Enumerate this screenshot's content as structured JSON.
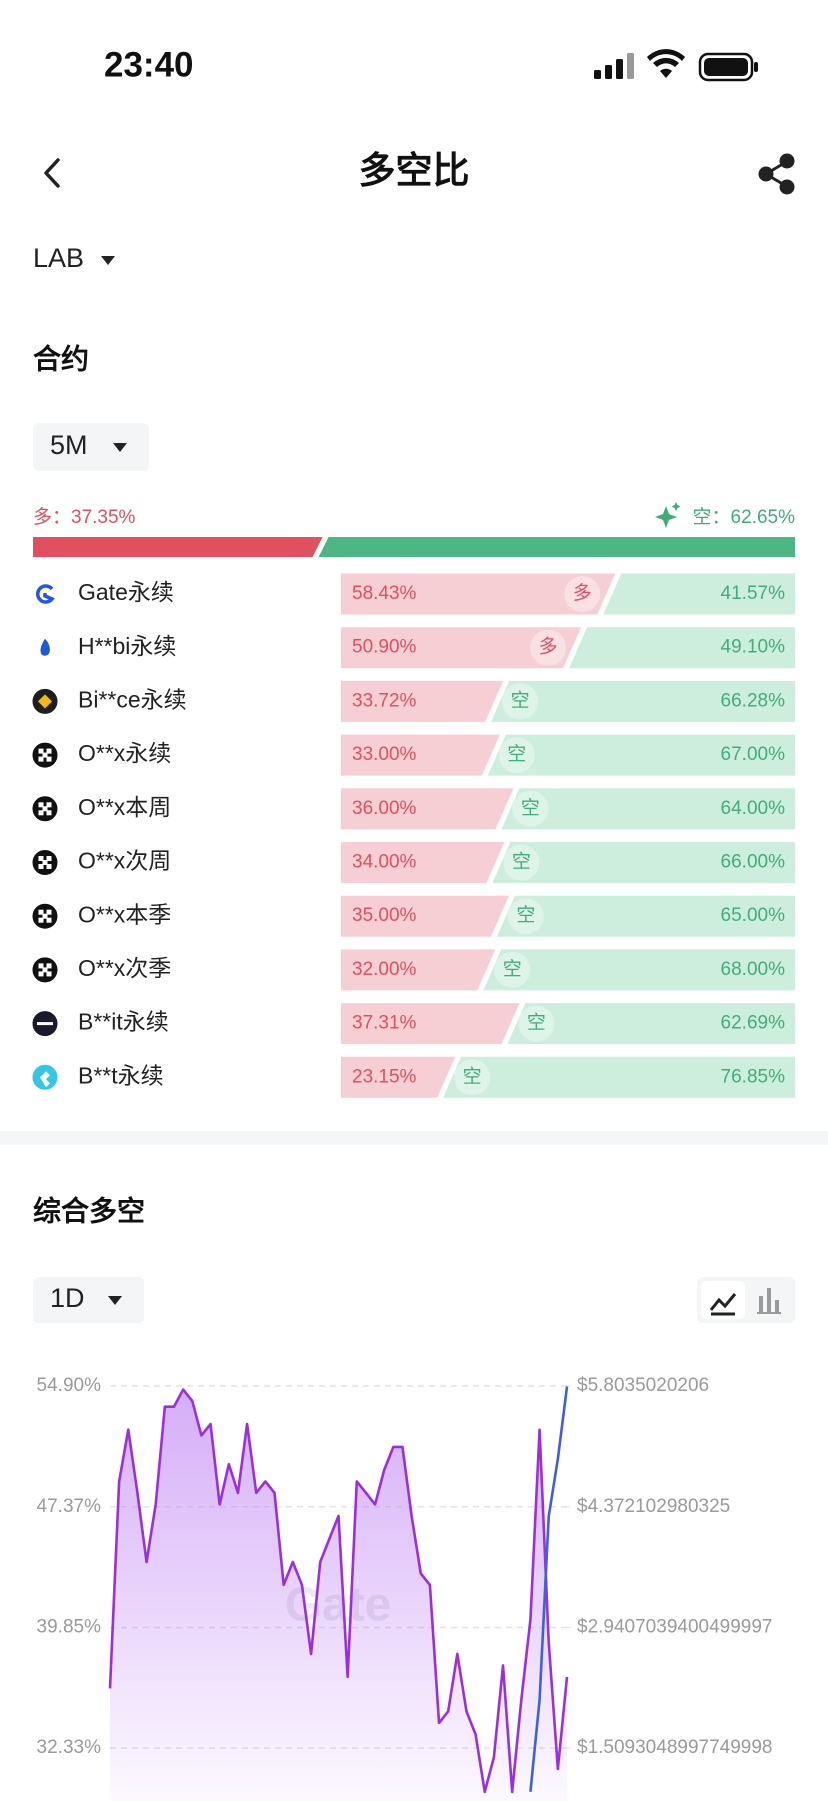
{
  "status_bar": {
    "time": "23:40"
  },
  "header": {
    "title": "多空比"
  },
  "coin": "LAB",
  "contracts": {
    "title": "合约",
    "period": "5M",
    "overall": {
      "long_label": "多：",
      "long": 37.35,
      "long_value_label": "37.35%",
      "short_label": "空：",
      "short": 62.65,
      "short_value_label": "62.65%"
    },
    "rows": [
      {
        "name": "Gate永续",
        "long": 58.43,
        "long_label": "58.43%",
        "short": 41.57,
        "short_label": "41.57%",
        "tag": "多"
      },
      {
        "name": "H**bi永续",
        "long": 50.9,
        "long_label": "50.90%",
        "short": 49.1,
        "short_label": "49.10%",
        "tag": "多"
      },
      {
        "name": "Bi**ce永续",
        "long": 33.72,
        "long_label": "33.72%",
        "short": 66.28,
        "short_label": "66.28%",
        "tag": "空"
      },
      {
        "name": "O**x永续",
        "long": 33.0,
        "long_label": "33.00%",
        "short": 67.0,
        "short_label": "67.00%",
        "tag": "空"
      },
      {
        "name": "O**x本周",
        "long": 36.0,
        "long_label": "36.00%",
        "short": 64.0,
        "short_label": "64.00%",
        "tag": "空"
      },
      {
        "name": "O**x次周",
        "long": 34.0,
        "long_label": "34.00%",
        "short": 66.0,
        "short_label": "66.00%",
        "tag": "空"
      },
      {
        "name": "O**x本季",
        "long": 35.0,
        "long_label": "35.00%",
        "short": 65.0,
        "short_label": "65.00%",
        "tag": "空"
      },
      {
        "name": "O**x次季",
        "long": 32.0,
        "long_label": "32.00%",
        "short": 68.0,
        "short_label": "68.00%",
        "tag": "空"
      },
      {
        "name": "B**it永续",
        "long": 37.31,
        "long_label": "37.31%",
        "short": 62.69,
        "short_label": "62.69%",
        "tag": "空"
      },
      {
        "name": "B**t永续",
        "long": 23.15,
        "long_label": "23.15%",
        "short": 76.85,
        "short_label": "76.85%",
        "tag": "空"
      }
    ]
  },
  "composite": {
    "title": "综合多空",
    "period": "1D"
  },
  "chart_data": {
    "type": "line",
    "watermark": "Gate",
    "ylim": [
      29.03,
      55.5
    ],
    "yticks": [
      {
        "value": 54.9,
        "label": "54.90%"
      },
      {
        "value": 47.37,
        "label": "47.37%"
      },
      {
        "value": 39.85,
        "label": "39.85%"
      },
      {
        "value": 32.33,
        "label": "32.33%"
      }
    ],
    "y2lim": [
      0.88,
      5.92
    ],
    "y2ticks": [
      {
        "value": 5.8035020206,
        "label": "$5.8035020206"
      },
      {
        "value": 4.372102980325,
        "label": "$4.372102980325"
      },
      {
        "value": 2.9407039400499997,
        "label": "$2.9407039400499997"
      },
      {
        "value": 1.5093048997749998,
        "label": "$1.5093048997749998"
      }
    ],
    "grid": true,
    "series": [
      {
        "color": "#9b2ee0",
        "values": [
          36.05,
          48.95,
          52.18,
          48.24,
          43.93,
          47.52,
          53.61,
          53.61,
          54.68,
          53.97,
          51.82,
          52.53,
          47.52,
          50.03,
          48.24,
          52.53,
          48.24,
          48.95,
          48.24,
          42.5,
          43.93,
          42.5,
          38.2,
          43.93,
          45.37,
          46.8,
          36.77,
          48.95,
          48.24,
          47.52,
          49.67,
          51.1,
          51.1,
          46.8,
          43.22,
          42.5,
          33.9,
          34.62,
          38.2,
          34.62,
          33.18,
          29.6,
          31.75,
          37.48,
          29.6,
          35.33,
          40.35,
          52.18,
          38.92,
          31.03,
          36.77
        ]
      },
      {
        "color": "#3d5fe0",
        "axis": "y2",
        "values": [
          null,
          null,
          null,
          null,
          null,
          null,
          null,
          null,
          null,
          null,
          null,
          null,
          null,
          null,
          null,
          null,
          null,
          null,
          null,
          null,
          null,
          null,
          null,
          null,
          null,
          null,
          null,
          null,
          null,
          null,
          null,
          null,
          null,
          null,
          null,
          null,
          null,
          null,
          null,
          null,
          null,
          null,
          null,
          null,
          null,
          null,
          0.99,
          2.08,
          4.26,
          4.94,
          5.8
        ]
      }
    ]
  }
}
